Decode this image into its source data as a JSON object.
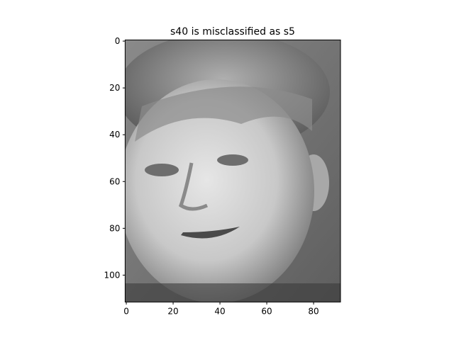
{
  "chart_data": {
    "type": "image",
    "title": "s40 is misclassified as s5",
    "xlim": [
      -0.5,
      91.5
    ],
    "ylim": [
      111.5,
      -0.5
    ],
    "xticks": [
      0,
      20,
      40,
      60,
      80
    ],
    "yticks": [
      0,
      20,
      40,
      60,
      80,
      100
    ],
    "cmap": "gray"
  }
}
